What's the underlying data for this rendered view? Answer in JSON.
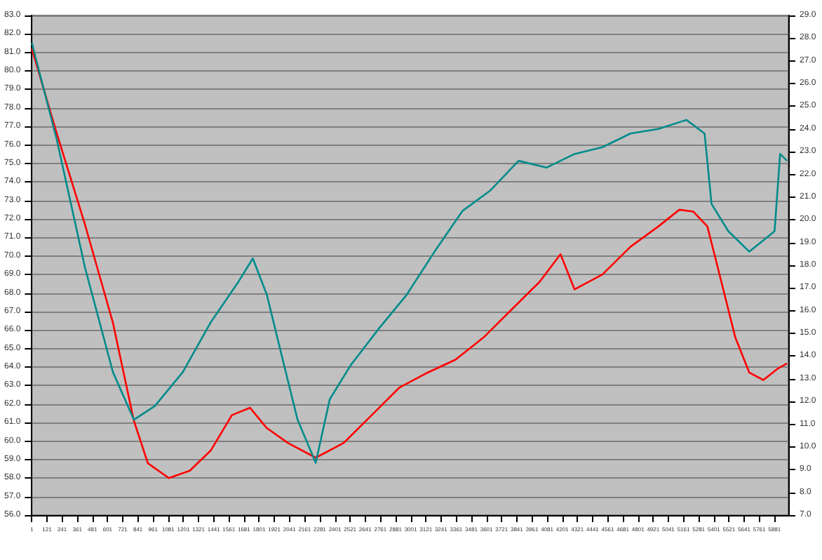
{
  "chart_data": {
    "type": "line",
    "grid": "y",
    "marker": "none",
    "line_style": "solid",
    "xlim": [
      1,
      5991
    ],
    "xticks": [
      1,
      121,
      241,
      361,
      481,
      601,
      721,
      841,
      961,
      1081,
      1201,
      1321,
      1441,
      1561,
      1681,
      1801,
      1921,
      2041,
      2161,
      2281,
      2401,
      2521,
      2641,
      2761,
      2881,
      3001,
      3121,
      3241,
      3361,
      3481,
      3601,
      3721,
      3841,
      3961,
      4081,
      4201,
      4321,
      4441,
      4561,
      4681,
      4801,
      4921,
      5041,
      5161,
      5281,
      5401,
      5521,
      5641,
      5761,
      5881
    ],
    "ylim": [
      56,
      83
    ],
    "yticks": [
      {
        "value": 56,
        "label": "56.0"
      },
      {
        "value": 57,
        "label": "57.0"
      },
      {
        "value": 58,
        "label": "58.0"
      },
      {
        "value": 59,
        "label": "59.0"
      },
      {
        "value": 60,
        "label": "60.0"
      },
      {
        "value": 61,
        "label": "61.0"
      },
      {
        "value": 62,
        "label": "62.0"
      },
      {
        "value": 63,
        "label": "63.0"
      },
      {
        "value": 64,
        "label": "64.0"
      },
      {
        "value": 65,
        "label": "65.0"
      },
      {
        "value": 66,
        "label": "66.0"
      },
      {
        "value": 67,
        "label": "67.0"
      },
      {
        "value": 68,
        "label": "68.0"
      },
      {
        "value": 69,
        "label": "69.0"
      },
      {
        "value": 70,
        "label": "70.0"
      },
      {
        "value": 71,
        "label": "71.0"
      },
      {
        "value": 72,
        "label": "72.0"
      },
      {
        "value": 73,
        "label": "73.0"
      },
      {
        "value": 74,
        "label": "74.0"
      },
      {
        "value": 75,
        "label": "75.0"
      },
      {
        "value": 76,
        "label": "76.0"
      },
      {
        "value": 77,
        "label": "77.0"
      },
      {
        "value": 78,
        "label": "78.0"
      },
      {
        "value": 79,
        "label": "79.0"
      },
      {
        "value": 80,
        "label": "80.0"
      },
      {
        "value": 81,
        "label": "81.0"
      },
      {
        "value": 82,
        "label": "82.0"
      },
      {
        "value": 83,
        "label": "83.0"
      }
    ],
    "y2lim": [
      7,
      29
    ],
    "y2ticks": [
      {
        "value": 7,
        "label": "7.0"
      },
      {
        "value": 8,
        "label": "8.0"
      },
      {
        "value": 9,
        "label": "9.0"
      },
      {
        "value": 10,
        "label": "10.0"
      },
      {
        "value": 11,
        "label": "11.0"
      },
      {
        "value": 12,
        "label": "12.0"
      },
      {
        "value": 13,
        "label": "13.0"
      },
      {
        "value": 14,
        "label": "14.0"
      },
      {
        "value": 15,
        "label": "15.0"
      },
      {
        "value": 16,
        "label": "16.0"
      },
      {
        "value": 17,
        "label": "17.0"
      },
      {
        "value": 18,
        "label": "18.0"
      },
      {
        "value": 19,
        "label": "19.0"
      },
      {
        "value": 20,
        "label": "20.0"
      },
      {
        "value": 21,
        "label": "21.0"
      },
      {
        "value": 22,
        "label": "22.0"
      },
      {
        "value": 23,
        "label": "23.0"
      },
      {
        "value": 24,
        "label": "24.0"
      },
      {
        "value": 25,
        "label": "25.0"
      },
      {
        "value": 26,
        "label": "26.0"
      },
      {
        "value": 27,
        "label": "27.0"
      },
      {
        "value": 28,
        "label": "28.0"
      },
      {
        "value": 29,
        "label": "29.0"
      }
    ],
    "series": [
      {
        "color": "#ff0000",
        "axis": "y",
        "x": [
          1,
          200,
          422,
          643,
          809,
          920,
          1086,
          1252,
          1419,
          1585,
          1729,
          1862,
          2028,
          2249,
          2471,
          2692,
          2913,
          3135,
          3356,
          3578,
          3799,
          4021,
          4187,
          4298,
          4519,
          4741,
          4962,
          5128,
          5239,
          5350,
          5461,
          5571,
          5682,
          5793,
          5904,
          5981
        ],
        "values": [
          81.2,
          76.6,
          71.7,
          66.4,
          61.1,
          58.8,
          58.0,
          58.4,
          59.5,
          61.4,
          61.8,
          60.7,
          59.9,
          59.1,
          59.9,
          61.4,
          62.9,
          63.7,
          64.4,
          65.6,
          67.1,
          68.6,
          70.1,
          68.2,
          69.0,
          70.5,
          71.6,
          72.5,
          72.4,
          71.6,
          68.6,
          65.6,
          63.7,
          63.3,
          63.9,
          64.2
        ]
      },
      {
        "color": "#008b8b",
        "axis": "y2",
        "x": [
          1,
          200,
          422,
          643,
          809,
          975,
          1197,
          1419,
          1640,
          1751,
          1862,
          1972,
          2105,
          2249,
          2360,
          2526,
          2747,
          2969,
          3190,
          3412,
          3633,
          3855,
          4076,
          4298,
          4519,
          4741,
          4962,
          5184,
          5328,
          5383,
          5516,
          5682,
          5793,
          5882,
          5926,
          5981
        ],
        "values": [
          27.8,
          23.5,
          17.9,
          13.3,
          11.2,
          11.8,
          13.3,
          15.5,
          17.3,
          18.3,
          16.7,
          14.2,
          11.2,
          9.3,
          12.1,
          13.6,
          15.2,
          16.7,
          18.6,
          20.4,
          21.3,
          22.6,
          22.3,
          22.9,
          23.2,
          23.8,
          24.0,
          24.4,
          23.8,
          20.7,
          19.5,
          18.6,
          19.1,
          19.5,
          22.9,
          22.6
        ]
      }
    ]
  }
}
